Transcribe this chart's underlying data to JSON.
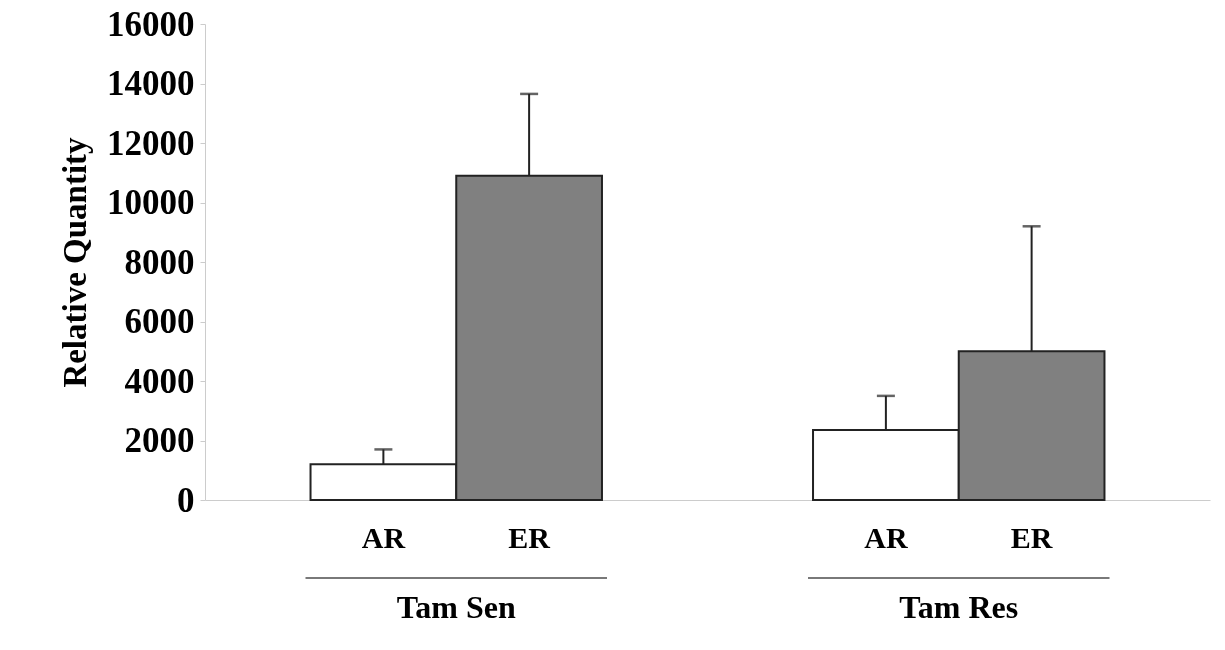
{
  "chart_data": {
    "type": "bar",
    "ylabel": "Relative Quantity",
    "categories": [
      "Tam Sen",
      "Tam Res"
    ],
    "series": [
      {
        "name": "AR",
        "color": "#ffffff",
        "values": [
          1200,
          2350
        ],
        "errors": [
          [
            1200,
            1700
          ],
          [
            2350,
            3500
          ]
        ]
      },
      {
        "name": "ER",
        "color": "#808080",
        "values": [
          10900,
          5000
        ],
        "errors": [
          [
            10900,
            13650
          ],
          [
            5000,
            9200
          ]
        ]
      }
    ],
    "ylim": [
      0,
      16000
    ],
    "yticks": [
      0,
      2000,
      4000,
      6000,
      8000,
      10000,
      12000,
      14000,
      16000
    ],
    "grid": false,
    "legend": false
  }
}
